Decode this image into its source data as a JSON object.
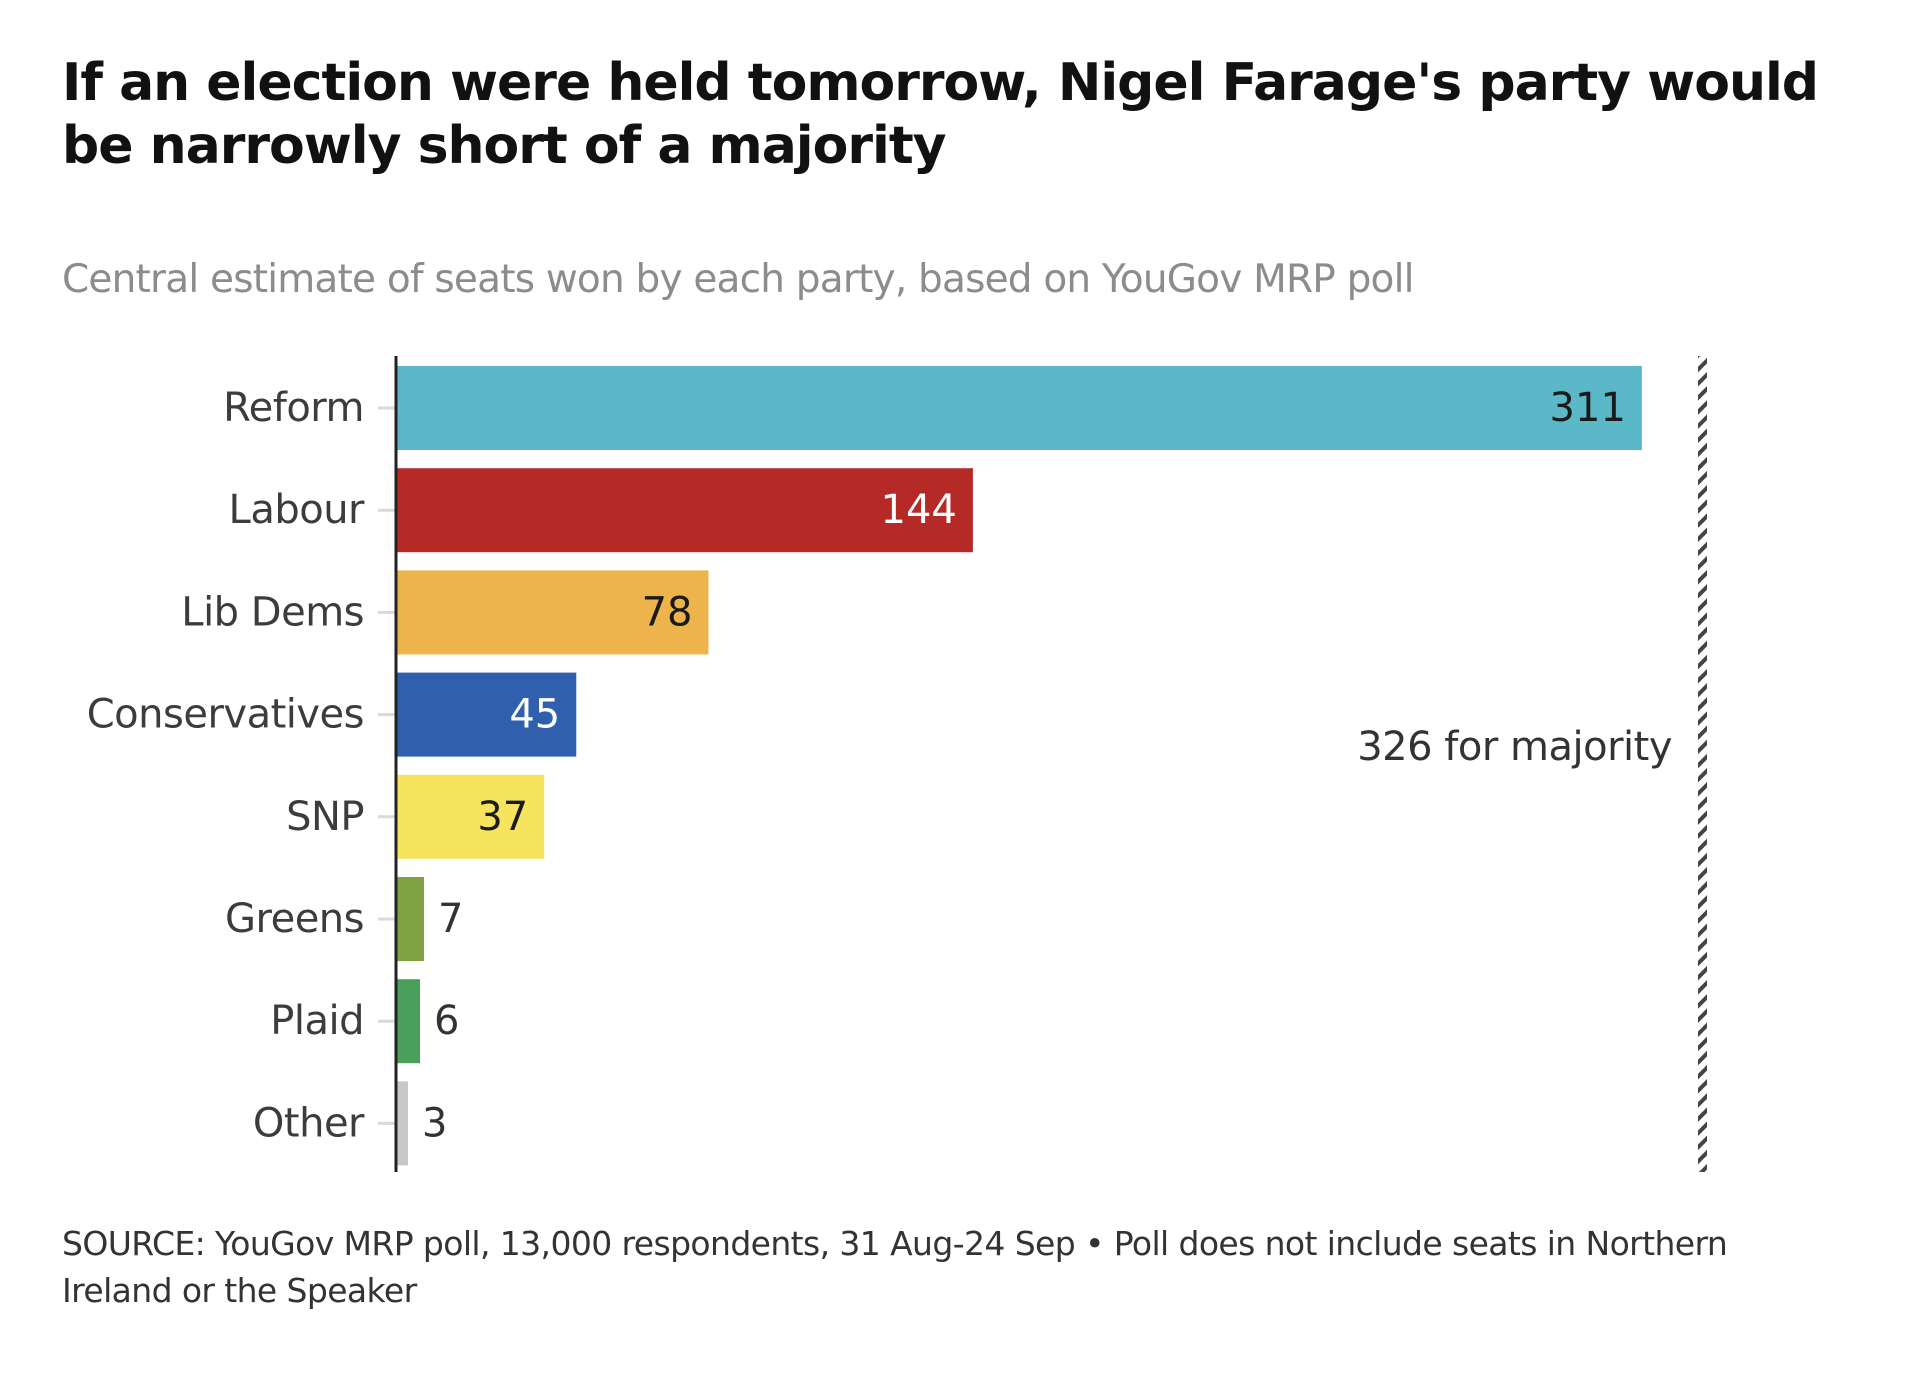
{
  "header": {
    "title": "If an election were held tomorrow, Nigel Farage's party would be narrowly short of a majority",
    "subtitle": "Central estimate of seats won by each party, based on YouGov MRP poll"
  },
  "footer": {
    "source": "SOURCE: YouGov MRP poll, 13,000 respondents, 31 Aug-24 Sep • Poll does not include seats in Northern Ireland or the Speaker"
  },
  "chart_data": {
    "type": "bar",
    "orientation": "horizontal",
    "title": "If an election were held tomorrow, Nigel Farage's party would be narrowly short of a majority",
    "subtitle": "Central estimate of seats won by each party, based on YouGov MRP poll",
    "xlabel": "",
    "ylabel": "",
    "categories": [
      "Reform",
      "Labour",
      "Lib Dems",
      "Conservatives",
      "SNP",
      "Greens",
      "Plaid",
      "Other"
    ],
    "values": [
      311,
      144,
      78,
      45,
      37,
      7,
      6,
      3
    ],
    "colors": [
      "#5bb8c9",
      "#b52a26",
      "#edb44b",
      "#2f5fad",
      "#f6e35e",
      "#7fa343",
      "#4aa05a",
      "#c8c8c8"
    ],
    "value_label_colors": [
      "#1a1a1a",
      "#ffffff",
      "#1a1a1a",
      "#ffffff",
      "#1a1a1a",
      "#333333",
      "#333333",
      "#333333"
    ],
    "xlim": [
      0,
      326
    ],
    "grid": false,
    "reference_line": {
      "value": 326,
      "label": "326 for majority",
      "style": "hatched"
    }
  }
}
